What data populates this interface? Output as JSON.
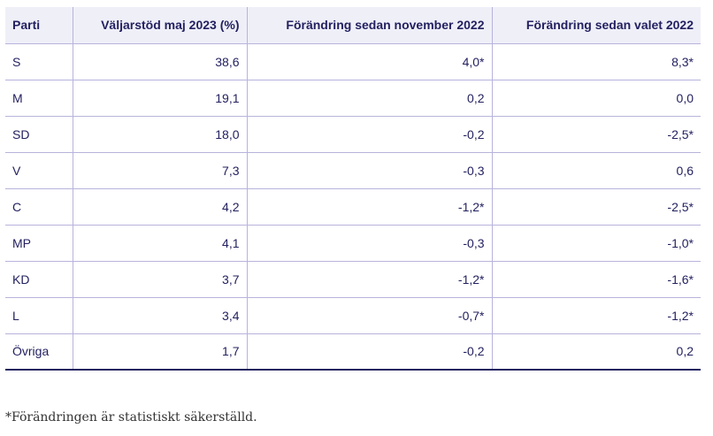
{
  "table": {
    "headers": [
      "Parti",
      "Väljarstöd maj 2023 (%)",
      "Förändring sedan november 2022",
      "Förändring sedan valet 2022"
    ],
    "rows": [
      [
        "S",
        "38,6",
        "4,0*",
        "8,3*"
      ],
      [
        "M",
        "19,1",
        "0,2",
        "0,0"
      ],
      [
        "SD",
        "18,0",
        "-0,2",
        "-2,5*"
      ],
      [
        "V",
        "7,3",
        "-0,3",
        "0,6"
      ],
      [
        "C",
        "4,2",
        "-1,2*",
        "-2,5*"
      ],
      [
        "MP",
        "4,1",
        "-0,3",
        "-1,0*"
      ],
      [
        "KD",
        "3,7",
        "-1,2*",
        "-1,6*"
      ],
      [
        "L",
        "3,4",
        "-0,7*",
        "-1,2*"
      ],
      [
        "Övriga",
        "1,7",
        "-0,2",
        "0,2"
      ]
    ]
  },
  "footnote": "*Förändringen är statistiskt säkerställd.",
  "colors": {
    "text": "#232160",
    "header_bg": "#efeff8",
    "border": "#b7b3dc"
  }
}
